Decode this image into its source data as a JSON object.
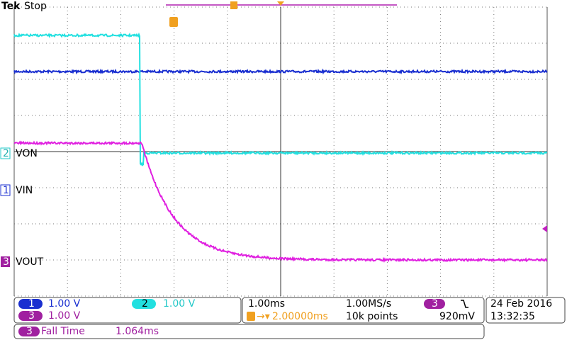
{
  "header": {
    "brand": "Tek",
    "status": "Stop"
  },
  "channels": [
    {
      "number": "1",
      "label": "VIN",
      "scale": "1.00 V"
    },
    {
      "number": "2",
      "label": "VON",
      "scale": "1.00 V"
    },
    {
      "number": "3",
      "label": "VOUT",
      "scale": "1.00 V"
    }
  ],
  "timebase": {
    "scale": "1.00ms",
    "sample_rate": "1.00MS/s",
    "trigger_position": "2.00000ms",
    "record_length": "10k points",
    "trigger_source": "3",
    "trigger_level": "920mV"
  },
  "datetime": {
    "date": "24 Feb 2016",
    "time": "13:32:35"
  },
  "measurement": {
    "source": "3",
    "name": "Fall Time",
    "value": "1.064ms"
  }
}
